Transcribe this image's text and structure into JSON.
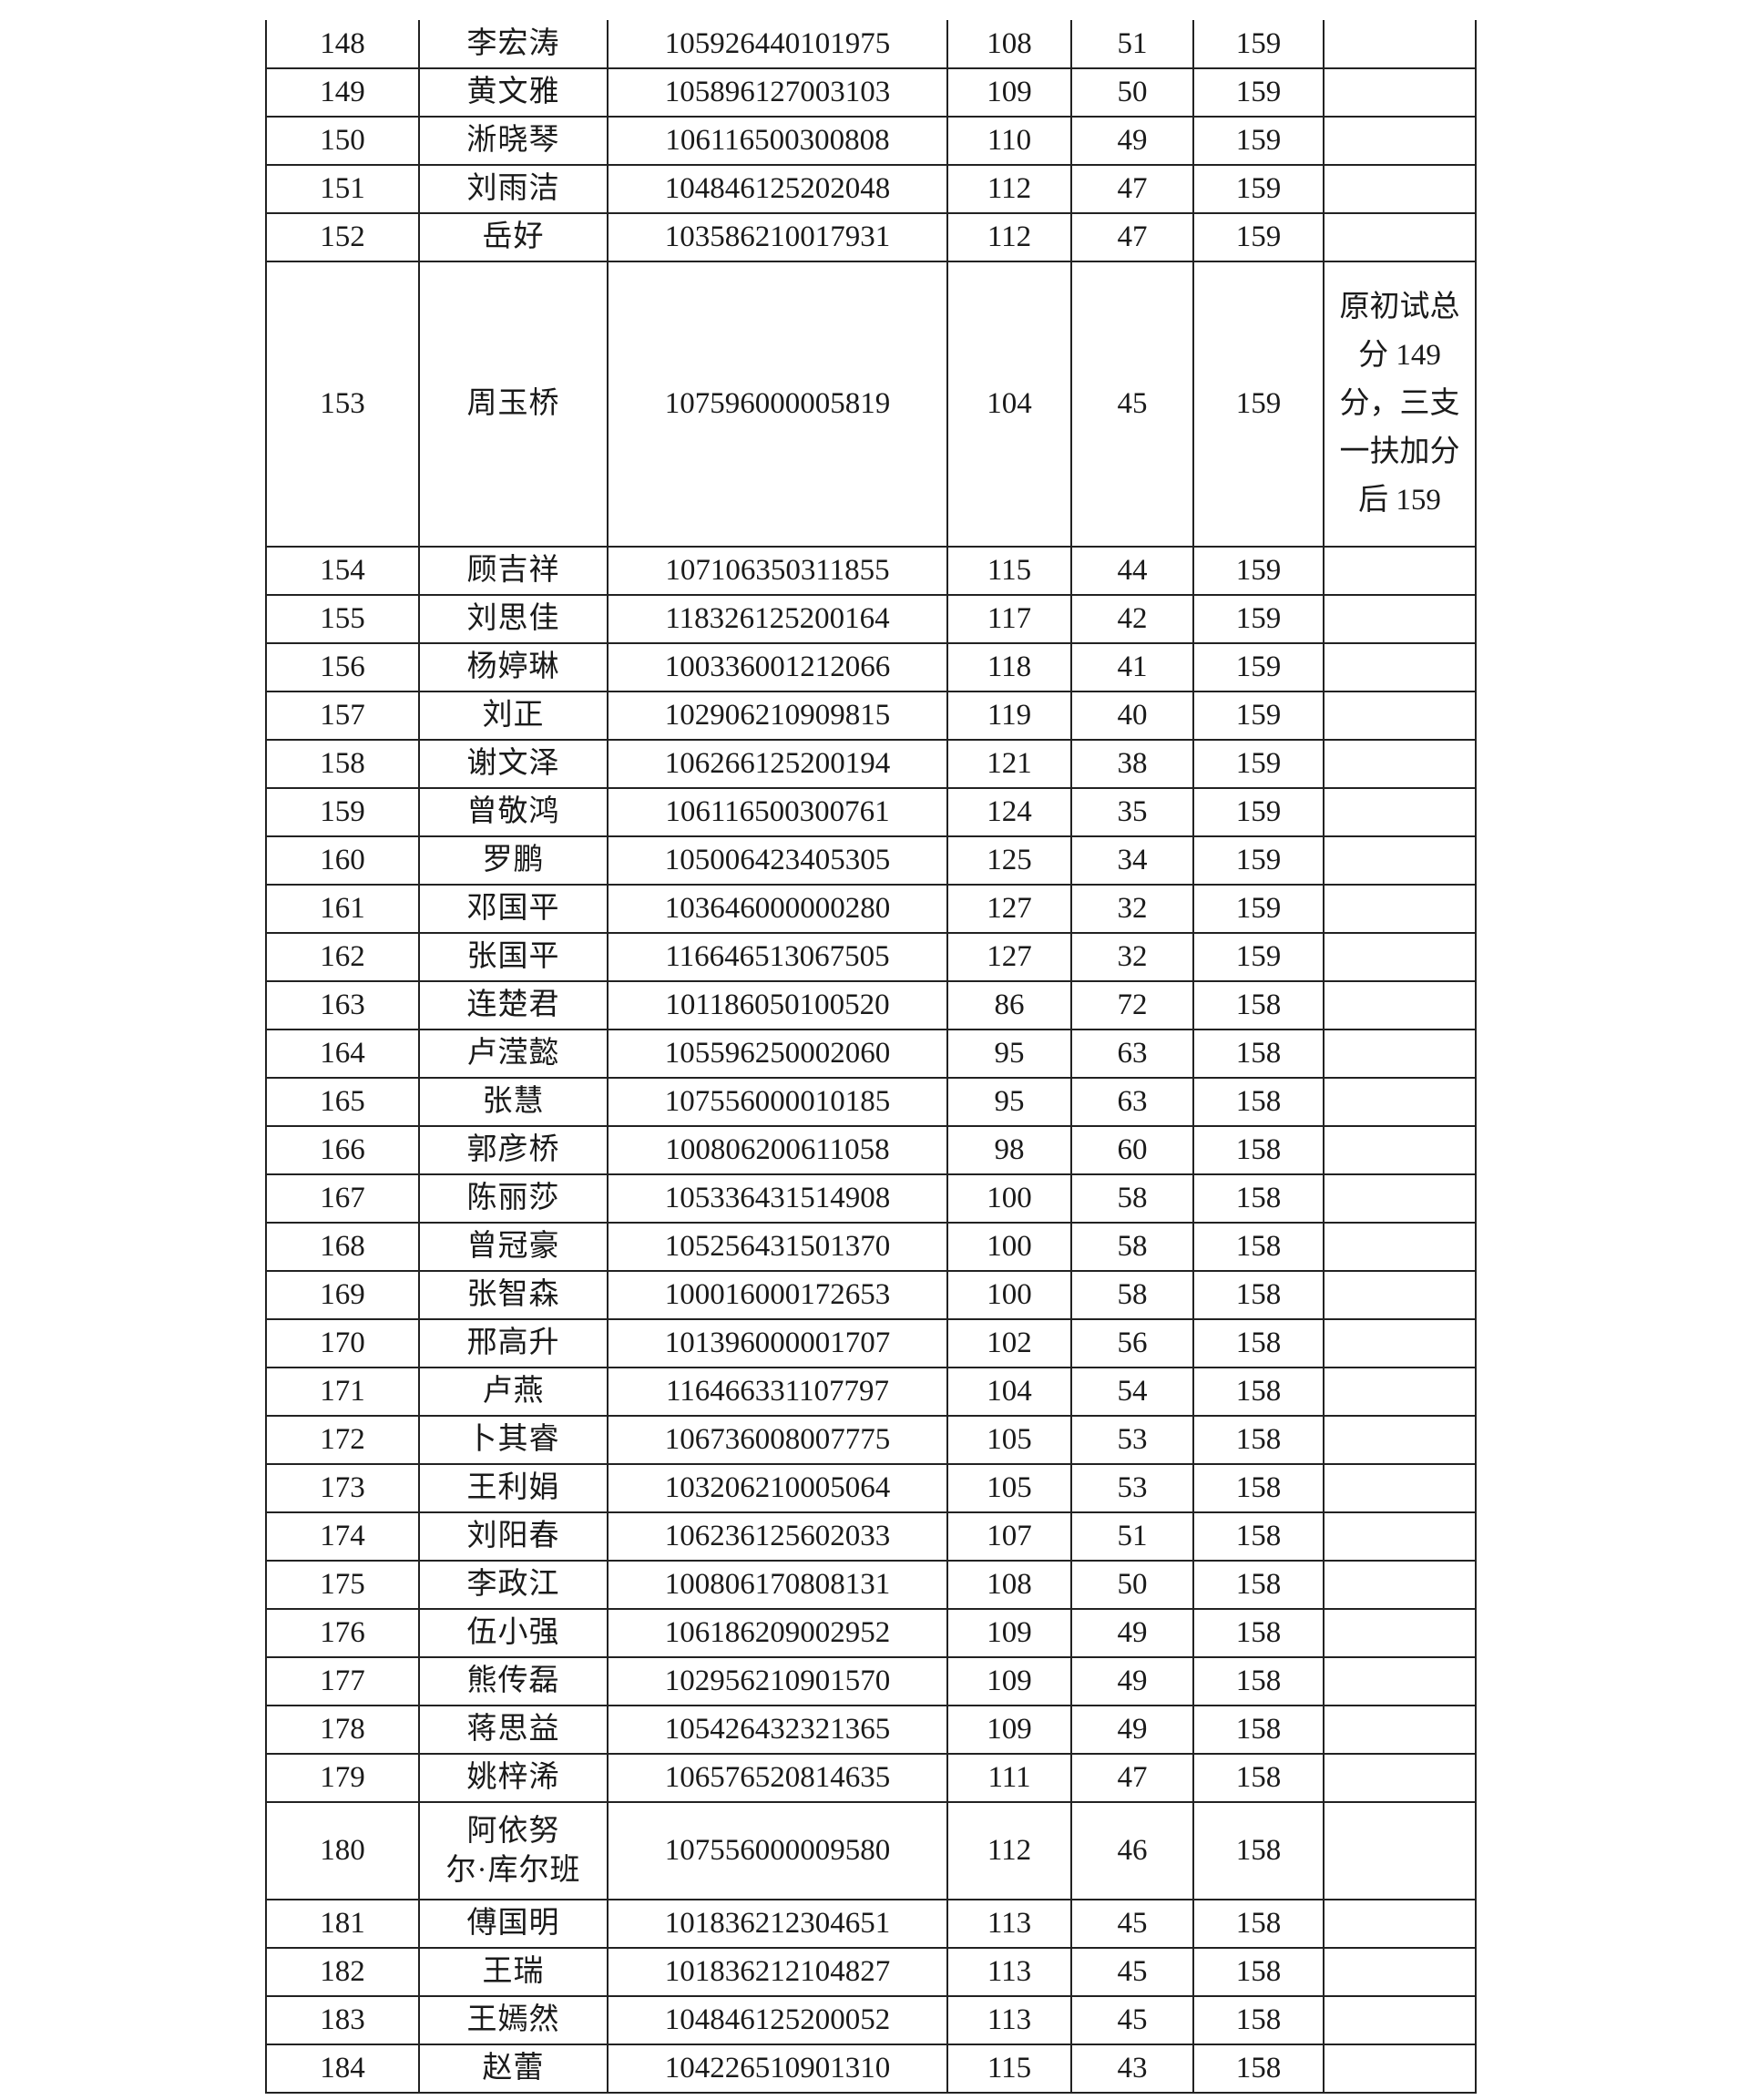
{
  "table": {
    "rows": [
      {
        "no": "148",
        "name": "李宏涛",
        "id": "105926440101975",
        "s1": "108",
        "s2": "51",
        "total": "159",
        "note": ""
      },
      {
        "no": "149",
        "name": "黄文雅",
        "id": "105896127003103",
        "s1": "109",
        "s2": "50",
        "total": "159",
        "note": ""
      },
      {
        "no": "150",
        "name": "淅晓琴",
        "id": "106116500300808",
        "s1": "110",
        "s2": "49",
        "total": "159",
        "note": ""
      },
      {
        "no": "151",
        "name": "刘雨洁",
        "id": "104846125202048",
        "s1": "112",
        "s2": "47",
        "total": "159",
        "note": ""
      },
      {
        "no": "152",
        "name": "岳好",
        "id": "103586210017931",
        "s1": "112",
        "s2": "47",
        "total": "159",
        "note": ""
      },
      {
        "no": "153",
        "name": "周玉桥",
        "id": "107596000005819",
        "s1": "104",
        "s2": "45",
        "total": "159",
        "note": "原初试总分 149 分，三支一扶加分后 159"
      },
      {
        "no": "154",
        "name": "顾吉祥",
        "id": "107106350311855",
        "s1": "115",
        "s2": "44",
        "total": "159",
        "note": ""
      },
      {
        "no": "155",
        "name": "刘思佳",
        "id": "118326125200164",
        "s1": "117",
        "s2": "42",
        "total": "159",
        "note": ""
      },
      {
        "no": "156",
        "name": "杨婷琳",
        "id": "100336001212066",
        "s1": "118",
        "s2": "41",
        "total": "159",
        "note": ""
      },
      {
        "no": "157",
        "name": "刘正",
        "id": "102906210909815",
        "s1": "119",
        "s2": "40",
        "total": "159",
        "note": ""
      },
      {
        "no": "158",
        "name": "谢文泽",
        "id": "106266125200194",
        "s1": "121",
        "s2": "38",
        "total": "159",
        "note": ""
      },
      {
        "no": "159",
        "name": "曾敬鸿",
        "id": "106116500300761",
        "s1": "124",
        "s2": "35",
        "total": "159",
        "note": ""
      },
      {
        "no": "160",
        "name": "罗鹏",
        "id": "105006423405305",
        "s1": "125",
        "s2": "34",
        "total": "159",
        "note": ""
      },
      {
        "no": "161",
        "name": "邓国平",
        "id": "103646000000280",
        "s1": "127",
        "s2": "32",
        "total": "159",
        "note": ""
      },
      {
        "no": "162",
        "name": "张国平",
        "id": "116646513067505",
        "s1": "127",
        "s2": "32",
        "total": "159",
        "note": ""
      },
      {
        "no": "163",
        "name": "连楚君",
        "id": "101186050100520",
        "s1": "86",
        "s2": "72",
        "total": "158",
        "note": ""
      },
      {
        "no": "164",
        "name": "卢滢懿",
        "id": "105596250002060",
        "s1": "95",
        "s2": "63",
        "total": "158",
        "note": ""
      },
      {
        "no": "165",
        "name": "张慧",
        "id": "107556000010185",
        "s1": "95",
        "s2": "63",
        "total": "158",
        "note": ""
      },
      {
        "no": "166",
        "name": "郭彦桥",
        "id": "100806200611058",
        "s1": "98",
        "s2": "60",
        "total": "158",
        "note": ""
      },
      {
        "no": "167",
        "name": "陈丽莎",
        "id": "105336431514908",
        "s1": "100",
        "s2": "58",
        "total": "158",
        "note": ""
      },
      {
        "no": "168",
        "name": "曾冠豪",
        "id": "105256431501370",
        "s1": "100",
        "s2": "58",
        "total": "158",
        "note": ""
      },
      {
        "no": "169",
        "name": "张智森",
        "id": "100016000172653",
        "s1": "100",
        "s2": "58",
        "total": "158",
        "note": ""
      },
      {
        "no": "170",
        "name": "邢高升",
        "id": "101396000001707",
        "s1": "102",
        "s2": "56",
        "total": "158",
        "note": ""
      },
      {
        "no": "171",
        "name": "卢燕",
        "id": "116466331107797",
        "s1": "104",
        "s2": "54",
        "total": "158",
        "note": ""
      },
      {
        "no": "172",
        "name": "卜其睿",
        "id": "106736008007775",
        "s1": "105",
        "s2": "53",
        "total": "158",
        "note": ""
      },
      {
        "no": "173",
        "name": "王利娟",
        "id": "103206210005064",
        "s1": "105",
        "s2": "53",
        "total": "158",
        "note": ""
      },
      {
        "no": "174",
        "name": "刘阳春",
        "id": "106236125602033",
        "s1": "107",
        "s2": "51",
        "total": "158",
        "note": ""
      },
      {
        "no": "175",
        "name": "李政江",
        "id": "100806170808131",
        "s1": "108",
        "s2": "50",
        "total": "158",
        "note": ""
      },
      {
        "no": "176",
        "name": "伍小强",
        "id": "106186209002952",
        "s1": "109",
        "s2": "49",
        "total": "158",
        "note": ""
      },
      {
        "no": "177",
        "name": "熊传磊",
        "id": "102956210901570",
        "s1": "109",
        "s2": "49",
        "total": "158",
        "note": ""
      },
      {
        "no": "178",
        "name": "蒋思益",
        "id": "105426432321365",
        "s1": "109",
        "s2": "49",
        "total": "158",
        "note": ""
      },
      {
        "no": "179",
        "name": "姚梓浠",
        "id": "106576520814635",
        "s1": "111",
        "s2": "47",
        "total": "158",
        "note": ""
      },
      {
        "no": "180",
        "name": "阿依努尔·库尔班",
        "id": "107556000009580",
        "s1": "112",
        "s2": "46",
        "total": "158",
        "note": ""
      },
      {
        "no": "181",
        "name": "傅国明",
        "id": "101836212304651",
        "s1": "113",
        "s2": "45",
        "total": "158",
        "note": ""
      },
      {
        "no": "182",
        "name": "王瑞",
        "id": "101836212104827",
        "s1": "113",
        "s2": "45",
        "total": "158",
        "note": ""
      },
      {
        "no": "183",
        "name": "王嫣然",
        "id": "104846125200052",
        "s1": "113",
        "s2": "45",
        "total": "158",
        "note": ""
      },
      {
        "no": "184",
        "name": "赵蕾",
        "id": "104226510901310",
        "s1": "115",
        "s2": "43",
        "total": "158",
        "note": ""
      }
    ]
  }
}
